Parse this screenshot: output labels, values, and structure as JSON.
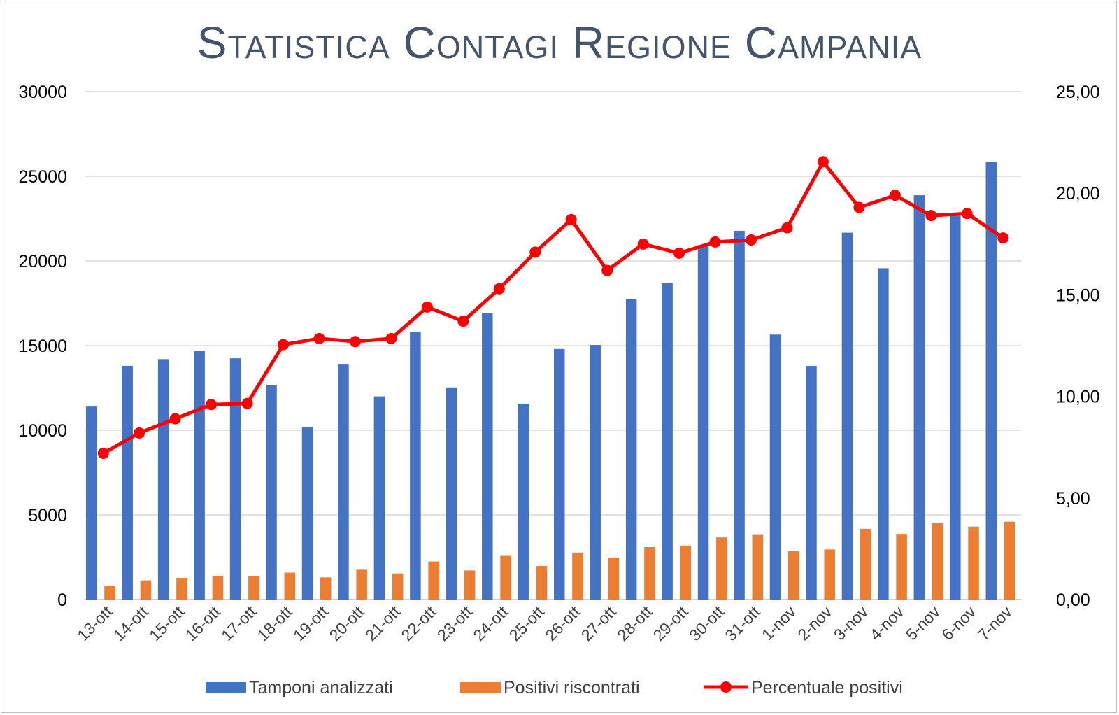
{
  "chart_data": {
    "type": "bar",
    "title": "Statistica Contagi Regione Campania",
    "categories": [
      "13-ott",
      "14-ott",
      "15-ott",
      "16-ott",
      "17-ott",
      "18-ott",
      "19-ott",
      "20-ott",
      "21-ott",
      "22-ott",
      "23-ott",
      "24-ott",
      "25-ott",
      "26-ott",
      "27-ott",
      "28-ott",
      "29-ott",
      "30-ott",
      "31-ott",
      "1-nov",
      "2-nov",
      "3-nov",
      "4-nov",
      "5-nov",
      "6-nov",
      "7-nov"
    ],
    "series": [
      {
        "name": "Tamponi analizzati",
        "type": "bar",
        "axis": "left",
        "color": "#4472c4",
        "values": [
          11400,
          13800,
          14200,
          14700,
          14250,
          12680,
          10200,
          13880,
          12000,
          15800,
          12530,
          16900,
          11570,
          14800,
          15040,
          17740,
          18680,
          20940,
          21780,
          15650,
          13800,
          21670,
          19570,
          23880,
          22800,
          25830
        ]
      },
      {
        "name": "Positivi riscontrati",
        "type": "bar",
        "axis": "left",
        "color": "#ed7d31",
        "values": [
          820,
          1130,
          1280,
          1410,
          1370,
          1590,
          1310,
          1760,
          1540,
          2250,
          1720,
          2580,
          1980,
          2780,
          2440,
          3100,
          3190,
          3670,
          3860,
          2860,
          2960,
          4180,
          3880,
          4510,
          4310,
          4600
        ]
      },
      {
        "name": "Percentuale positivi",
        "type": "line",
        "axis": "right",
        "color": "#ff0000",
        "values": [
          7.2,
          8.2,
          8.9,
          9.6,
          9.65,
          12.55,
          12.85,
          12.7,
          12.85,
          14.4,
          13.7,
          15.3,
          17.1,
          18.7,
          16.2,
          17.5,
          17.05,
          17.6,
          17.7,
          18.3,
          21.55,
          19.3,
          19.9,
          18.9,
          19.0,
          17.8
        ]
      }
    ],
    "y_left": {
      "min": 0,
      "max": 30000,
      "ticks": [
        "0",
        "5000",
        "10000",
        "15000",
        "20000",
        "25000",
        "30000"
      ]
    },
    "y_right": {
      "min": 0,
      "max": 25,
      "ticks": [
        "0,00",
        "5,00",
        "10,00",
        "15,00",
        "20,00",
        "25,00"
      ]
    },
    "grid": true,
    "legend": "bottom"
  }
}
